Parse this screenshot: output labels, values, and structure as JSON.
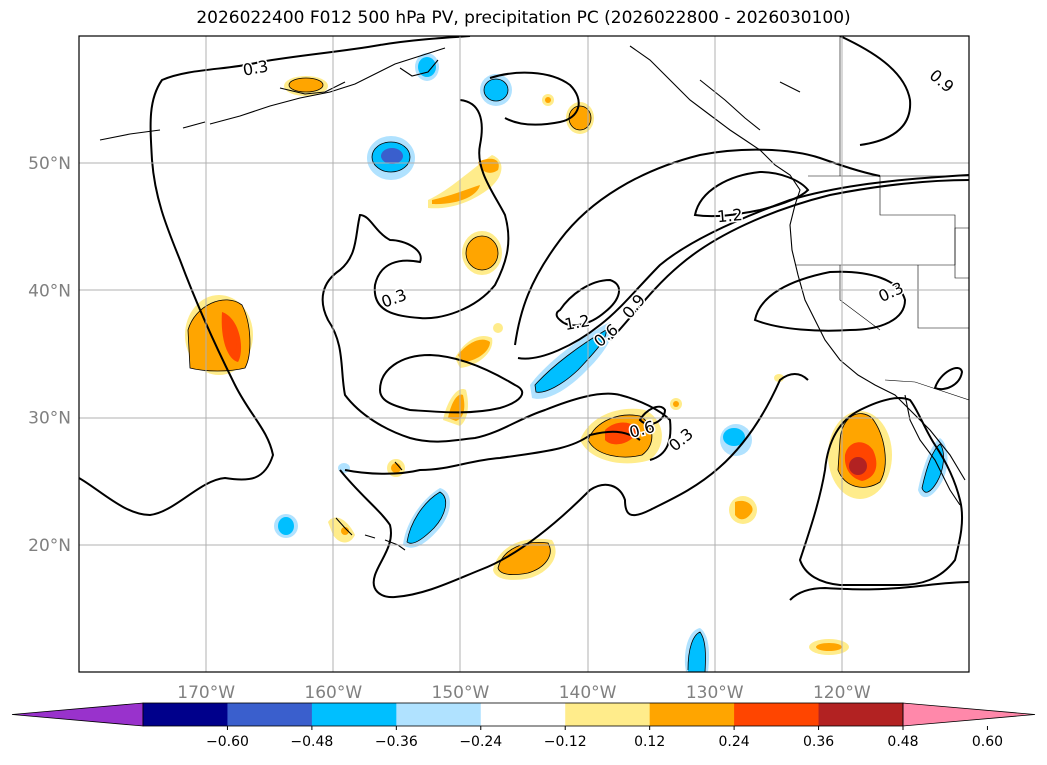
{
  "title": "2026022400 F012 500 hPa PV, precipitation PC (2026022800 - 2026030100)",
  "map": {
    "projection": "PlateCarree",
    "lon_range": [
      -180,
      -110
    ],
    "lat_range": [
      10,
      60
    ],
    "lat_ticks": [
      {
        "value": 20,
        "label": "20°N"
      },
      {
        "value": 30,
        "label": "30°N"
      },
      {
        "value": 40,
        "label": "40°N"
      },
      {
        "value": 50,
        "label": "50°N"
      }
    ],
    "lon_ticks": [
      {
        "value": -170,
        "label": "170°W"
      },
      {
        "value": -160,
        "label": "160°W"
      },
      {
        "value": -150,
        "label": "150°W"
      },
      {
        "value": -140,
        "label": "140°W"
      },
      {
        "value": -130,
        "label": "130°W"
      },
      {
        "value": -120,
        "label": "120°W"
      }
    ],
    "grid": true,
    "contour_labels": [
      {
        "text": "0.3",
        "lon": -166.1,
        "lat": 57.4,
        "rot": -10
      },
      {
        "text": "0.9",
        "lon": -112.2,
        "lat": 56.4,
        "rot": 40
      },
      {
        "text": "1.2",
        "lon": -128.8,
        "lat": 45.8,
        "rot": -5
      },
      {
        "text": "0.3",
        "lon": -155.2,
        "lat": 39.3,
        "rot": -20
      },
      {
        "text": "0.3",
        "lon": -116.1,
        "lat": 39.8,
        "rot": -25
      },
      {
        "text": "1.2",
        "lon": -140.8,
        "lat": 37.4,
        "rot": -10
      },
      {
        "text": "0.9",
        "lon": -136.3,
        "lat": 38.7,
        "rot": -50
      },
      {
        "text": "0.6",
        "lon": -138.5,
        "lat": 36.4,
        "rot": -40
      },
      {
        "text": "0.6",
        "lon": -135.7,
        "lat": 29.0,
        "rot": -15
      },
      {
        "text": "0.3",
        "lon": -132.6,
        "lat": 28.2,
        "rot": -40
      }
    ]
  },
  "colorbar": {
    "under_color": "#9932cc",
    "over_color": "#ff88aa",
    "colors": [
      "#00008b",
      "#3a5fcd",
      "#00bfff",
      "#b0e2ff",
      "#ffffff",
      "#ffec8b",
      "#ffa500",
      "#ff4500",
      "#b22222"
    ],
    "ticks": [
      "−0.60",
      "−0.48",
      "−0.36",
      "−0.24",
      "−0.12",
      "0.12",
      "0.24",
      "0.36",
      "0.48",
      "0.60"
    ]
  }
}
